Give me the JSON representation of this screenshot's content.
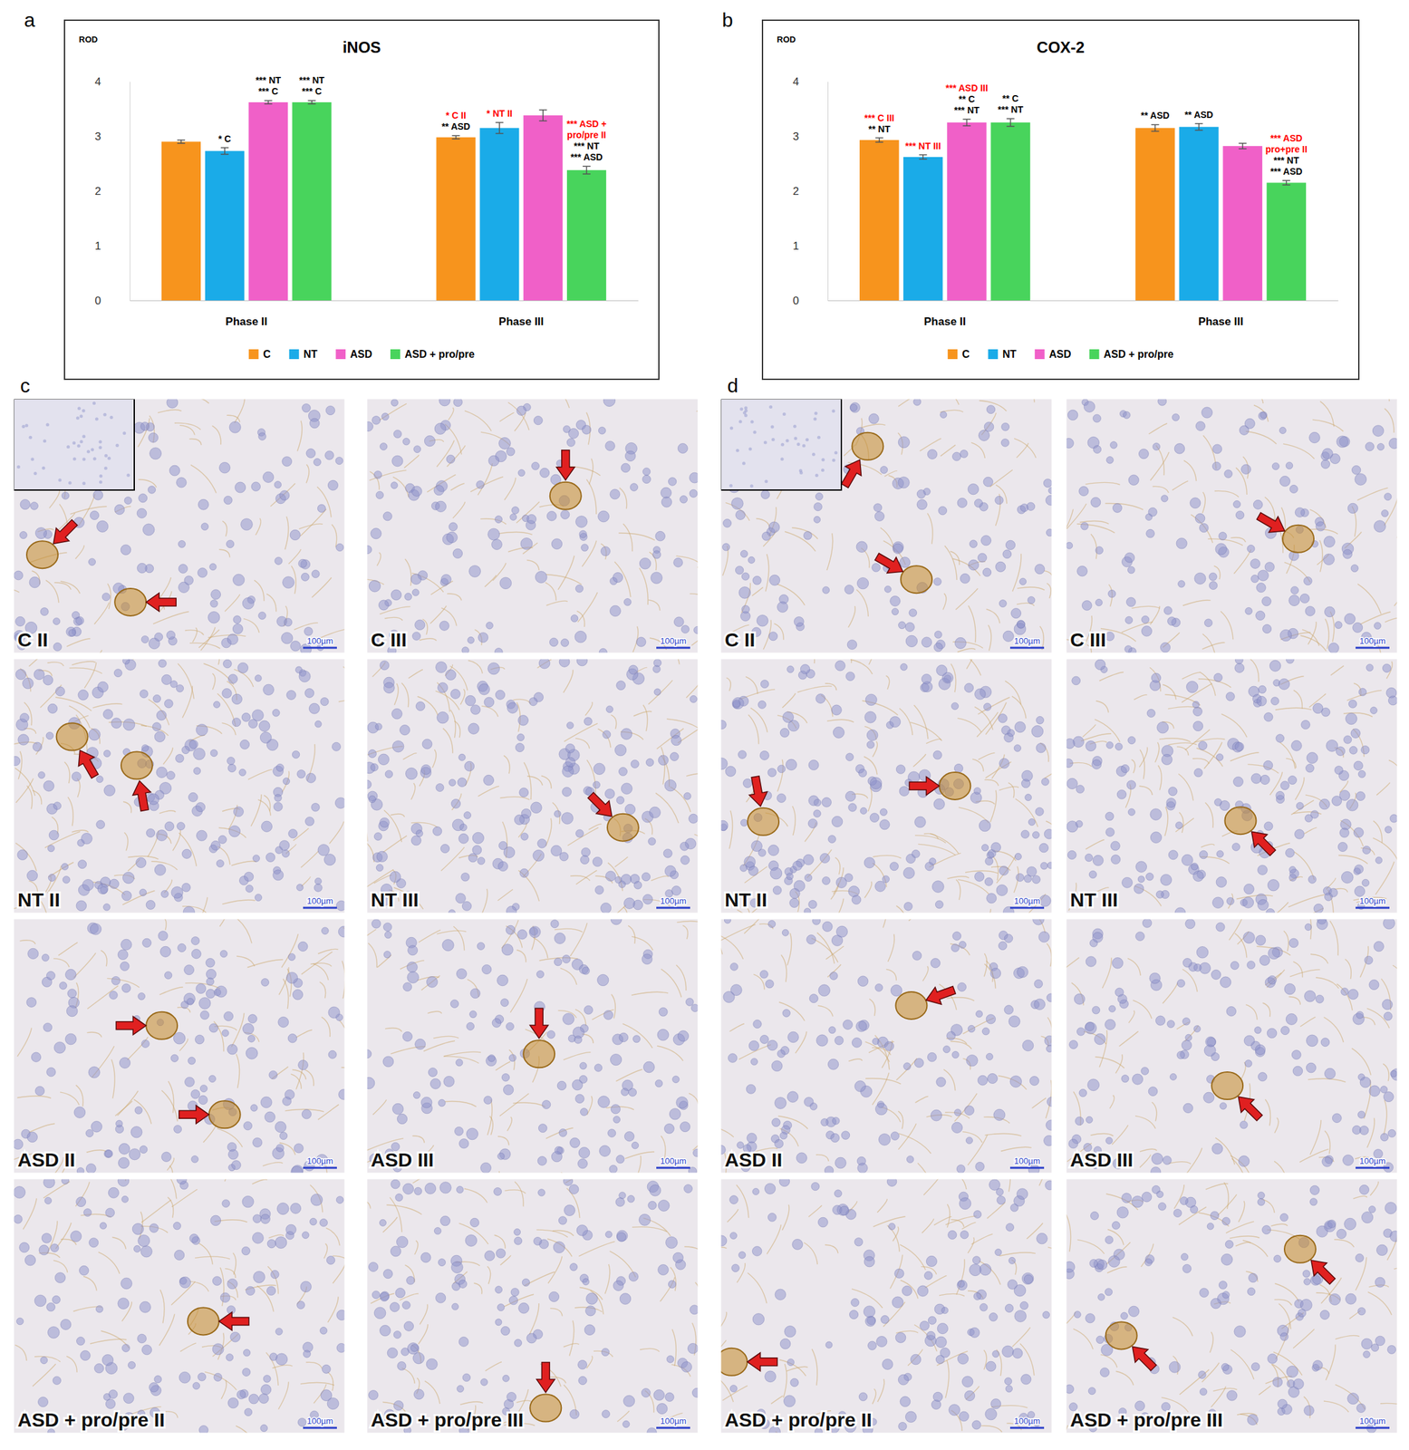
{
  "chart_data": [
    {
      "type": "bar",
      "label": "a",
      "title": "iNOS",
      "y_label": "ROD",
      "categories": [
        "Phase II",
        "Phase III"
      ],
      "ylim": [
        0,
        4
      ],
      "yticks": [
        0,
        1,
        2,
        3,
        4
      ],
      "grid": false,
      "legend": "bottom",
      "series": [
        {
          "name": "C",
          "color": "#f7941d",
          "values": [
            2.9,
            2.98
          ],
          "errors": [
            0.03,
            0.03
          ],
          "annotations": [
            [],
            [
              {
                "text": "* C II",
                "color": "#ff0000"
              },
              {
                "text": "** ASD",
                "color": "#000000"
              }
            ]
          ]
        },
        {
          "name": "NT",
          "color": "#1aabe8",
          "values": [
            2.73,
            3.15
          ],
          "errors": [
            0.06,
            0.1
          ],
          "annotations": [
            [
              {
                "text": "* C",
                "color": "#000000"
              }
            ],
            [
              {
                "text": "* NT II",
                "color": "#ff0000"
              }
            ]
          ]
        },
        {
          "name": "ASD",
          "color": "#f060c8",
          "values": [
            3.62,
            3.38
          ],
          "errors": [
            0.03,
            0.1
          ],
          "annotations": [
            [
              {
                "text": "*** NT",
                "color": "#000000"
              },
              {
                "text": "*** C",
                "color": "#000000"
              }
            ],
            []
          ]
        },
        {
          "name": "ASD + pro/pre",
          "color": "#48d45c",
          "values": [
            3.62,
            2.38
          ],
          "errors": [
            0.03,
            0.07
          ],
          "annotations": [
            [
              {
                "text": "*** NT",
                "color": "#000000"
              },
              {
                "text": "*** C",
                "color": "#000000"
              }
            ],
            [
              {
                "text": "*** ASD +",
                "color": "#ff0000"
              },
              {
                "text": "pro/pre II",
                "color": "#ff0000"
              },
              {
                "text": "*** NT",
                "color": "#000000"
              },
              {
                "text": "*** ASD",
                "color": "#000000"
              }
            ]
          ]
        }
      ]
    },
    {
      "type": "bar",
      "label": "b",
      "title": "COX-2",
      "y_label": "ROD",
      "categories": [
        "Phase II",
        "Phase III"
      ],
      "ylim": [
        0,
        4
      ],
      "yticks": [
        0,
        1,
        2,
        3,
        4
      ],
      "grid": false,
      "legend": "bottom",
      "series": [
        {
          "name": "C",
          "color": "#f7941d",
          "values": [
            2.93,
            3.15
          ],
          "errors": [
            0.04,
            0.06
          ],
          "annotations": [
            [
              {
                "text": "*** C III",
                "color": "#ff0000"
              },
              {
                "text": "** NT",
                "color": "#000000"
              }
            ],
            [
              {
                "text": "** ASD",
                "color": "#000000"
              }
            ]
          ]
        },
        {
          "name": "NT",
          "color": "#1aabe8",
          "values": [
            2.62,
            3.17
          ],
          "errors": [
            0.04,
            0.06
          ],
          "annotations": [
            [
              {
                "text": "*** NT III",
                "color": "#ff0000"
              }
            ],
            [
              {
                "text": "** ASD",
                "color": "#000000"
              }
            ]
          ]
        },
        {
          "name": "ASD",
          "color": "#f060c8",
          "values": [
            3.25,
            2.82
          ],
          "errors": [
            0.06,
            0.05
          ],
          "annotations": [
            [
              {
                "text": "*** ASD III",
                "color": "#ff0000"
              },
              {
                "text": "** C",
                "color": "#000000"
              },
              {
                "text": "*** NT",
                "color": "#000000"
              }
            ],
            []
          ]
        },
        {
          "name": "ASD + pro/pre",
          "color": "#48d45c",
          "values": [
            3.25,
            2.15
          ],
          "errors": [
            0.07,
            0.04
          ],
          "annotations": [
            [
              {
                "text": "** C",
                "color": "#000000"
              },
              {
                "text": "*** NT",
                "color": "#000000"
              }
            ],
            [
              {
                "text": "*** ASD",
                "color": "#ff0000"
              },
              {
                "text": "pro+pre II",
                "color": "#ff0000"
              },
              {
                "text": "*** NT",
                "color": "#000000"
              },
              {
                "text": "*** ASD",
                "color": "#000000"
              }
            ]
          ]
        }
      ]
    }
  ],
  "micrographs": {
    "scale_bar": "100µm",
    "panels": [
      {
        "label": "c",
        "images": [
          "C II",
          "C III",
          "NT II",
          "NT III",
          "ASD II",
          "ASD III",
          "ASD + pro/pre II",
          "ASD + pro/pre III"
        ]
      },
      {
        "label": "d",
        "images": [
          "C II",
          "C III",
          "NT II",
          "NT III",
          "ASD II",
          "ASD III",
          "ASD + pro/pre II",
          "ASD + pro/pre III"
        ]
      }
    ]
  }
}
